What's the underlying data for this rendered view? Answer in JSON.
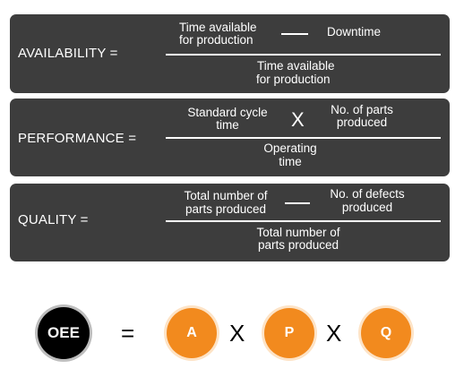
{
  "availability": {
    "label": "AVAILABILITY =",
    "num_a_l1": "Time available",
    "num_a_l2": "for production",
    "num_b": "Downtime",
    "den_l1": "Time available",
    "den_l2": "for production"
  },
  "performance": {
    "label": "PERFORMANCE =",
    "num_a_l1": "Standard cycle",
    "num_a_l2": "time",
    "op": "X",
    "num_b_l1": "No. of parts",
    "num_b_l2": "produced",
    "den_l1": "Operating",
    "den_l2": "time"
  },
  "quality": {
    "label": "QUALITY =",
    "num_a_l1": "Total number of",
    "num_a_l2": "parts produced",
    "num_b_l1": "No. of defects",
    "num_b_l2": "produced",
    "den_l1": "Total number of",
    "den_l2": "parts produced"
  },
  "summary": {
    "oee": "OEE",
    "equals": "=",
    "a": "A",
    "x1": "X",
    "p": "P",
    "x2": "X",
    "q": "Q"
  },
  "colors": {
    "panel": "#3d3d3d",
    "orange": "#f28a1e",
    "oee": "#000000"
  }
}
